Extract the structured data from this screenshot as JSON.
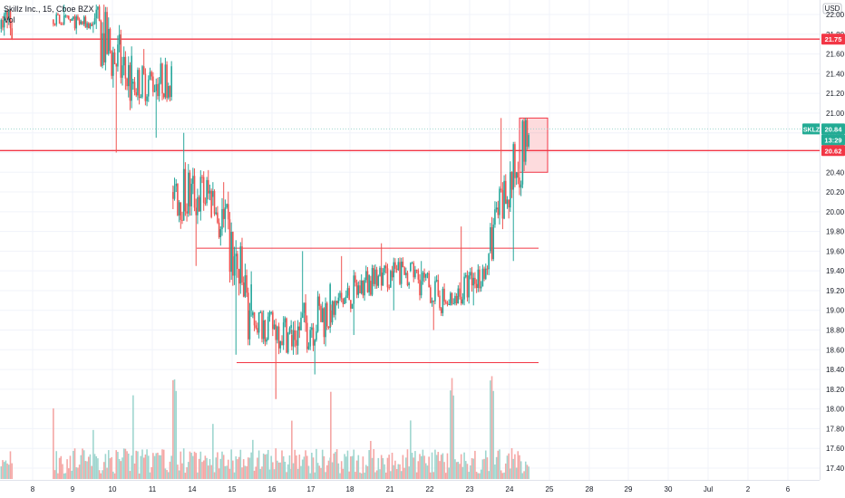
{
  "header": {
    "symbol_line": "Skillz Inc., 15, Cboe BZX",
    "volume_label": "Vol"
  },
  "price_axis": {
    "currency": "USD",
    "ticks": [
      "22.00",
      "21.80",
      "21.60",
      "21.40",
      "21.20",
      "21.00",
      "20.80",
      "20.60",
      "20.40",
      "20.20",
      "20.00",
      "19.80",
      "19.60",
      "19.40",
      "19.20",
      "19.00",
      "18.80",
      "18.60",
      "18.40",
      "18.20",
      "18.00",
      "17.80",
      "17.60",
      "17.40"
    ]
  },
  "price_badges": [
    {
      "text": "21.75",
      "value": 21.75,
      "color": "#f23645"
    },
    {
      "text": "SKLZ",
      "value": 20.84,
      "color": "#22ab94",
      "kind": "symbol"
    },
    {
      "text": "20.84",
      "value": 20.84,
      "color": "#22ab94"
    },
    {
      "text": "13:29",
      "value": 20.73,
      "color": "#22ab94"
    },
    {
      "text": "20.62",
      "value": 20.62,
      "color": "#f23645"
    }
  ],
  "time_axis": {
    "labels": [
      "8",
      "9",
      "10",
      "11",
      "14",
      "15",
      "16",
      "17",
      "18",
      "21",
      "22",
      "23",
      "24",
      "25",
      "28",
      "29",
      "30",
      "Jul",
      "2",
      "6"
    ]
  },
  "colors": {
    "up": "#26a69a",
    "down": "#ef5350",
    "vol_up": "#9fd6cf",
    "vol_down": "#f5a7a5",
    "level": "#f23645",
    "grid": "#f0f3fa"
  },
  "chart_data": {
    "type": "candlestick",
    "title": "Skillz Inc., 15, Cboe BZX",
    "xlabel": "",
    "ylabel": "USD",
    "ylim": [
      17.3,
      22.1
    ],
    "grid": true,
    "last_price": 20.84,
    "horizontal_levels": [
      21.75,
      20.62
    ],
    "range_levels": [
      {
        "price": 19.63,
        "from": "14",
        "to": "24"
      },
      {
        "price": 18.47,
        "from": "15",
        "to": "24"
      }
    ],
    "highlight_zone": {
      "from_price": 20.4,
      "to_price": 20.95,
      "session": "24"
    },
    "sessions": [
      {
        "day": "8",
        "open": 21.9,
        "close": 21.95,
        "high": 22.05,
        "low": 20.9
      },
      {
        "day": "9",
        "open": 21.95,
        "close": 21.9,
        "high": 22.1,
        "low": 21.8
      },
      {
        "day": "10",
        "open": 21.9,
        "close": 21.3,
        "high": 22.1,
        "low": 20.6
      },
      {
        "day": "11",
        "open": 21.3,
        "close": 21.35,
        "high": 21.65,
        "low": 20.75
      },
      {
        "day": "14",
        "open": 20.2,
        "close": 20.15,
        "high": 20.8,
        "low": 19.45
      },
      {
        "day": "15",
        "open": 20.15,
        "close": 18.95,
        "high": 20.3,
        "low": 18.55
      },
      {
        "day": "16",
        "open": 18.95,
        "close": 18.75,
        "high": 19.0,
        "low": 18.1
      },
      {
        "day": "17",
        "open": 18.75,
        "close": 19.0,
        "high": 19.6,
        "low": 18.35
      },
      {
        "day": "18",
        "open": 19.0,
        "close": 19.3,
        "high": 19.55,
        "low": 18.75
      },
      {
        "day": "21",
        "open": 19.3,
        "close": 19.4,
        "high": 19.68,
        "low": 19.0
      },
      {
        "day": "22",
        "open": 19.4,
        "close": 19.05,
        "high": 19.5,
        "low": 18.8
      },
      {
        "day": "23",
        "open": 19.05,
        "close": 19.45,
        "high": 19.85,
        "low": 19.05
      },
      {
        "day": "24",
        "open": 19.6,
        "close": 20.84,
        "high": 20.95,
        "low": 19.5
      }
    ]
  }
}
